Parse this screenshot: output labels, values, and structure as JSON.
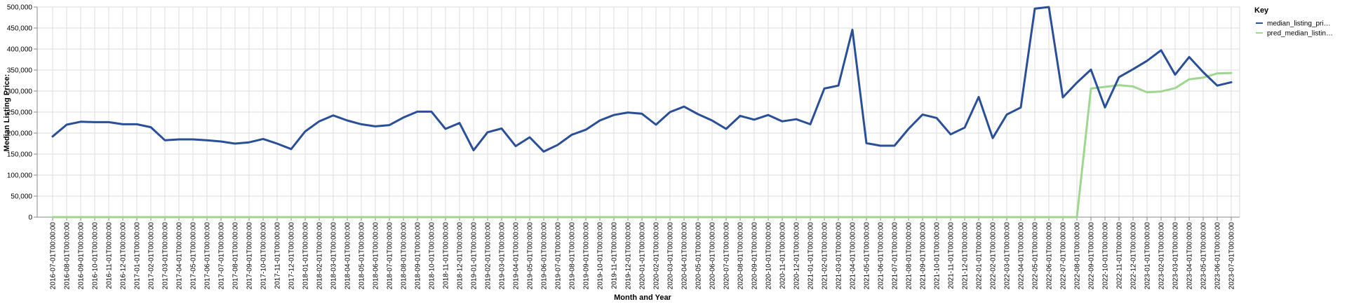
{
  "chart_data": {
    "type": "line",
    "title": "",
    "xlabel": "Month and Year",
    "ylabel": "Median Listing Price:",
    "ylim": [
      0,
      500000
    ],
    "yticks": [
      0,
      50000,
      100000,
      150000,
      200000,
      250000,
      300000,
      350000,
      400000,
      450000,
      500000
    ],
    "ytick_labels": [
      "0",
      "50,000",
      "100,000",
      "150,000",
      "200,000",
      "250,000",
      "300,000",
      "350,000",
      "400,000",
      "450,000",
      "500,000"
    ],
    "grid": true,
    "legend": {
      "title": "Key",
      "position": "top-right",
      "labels": [
        "median_listing_pri…",
        "pred_median_listin…"
      ]
    },
    "x": [
      "2016-07-01T00:00:00",
      "2016-08-01T00:00:00",
      "2016-09-01T00:00:00",
      "2016-10-01T00:00:00",
      "2016-11-01T00:00:00",
      "2016-12-01T00:00:00",
      "2017-01-01T00:00:00",
      "2017-02-01T00:00:00",
      "2017-03-01T00:00:00",
      "2017-04-01T00:00:00",
      "2017-05-01T00:00:00",
      "2017-06-01T00:00:00",
      "2017-07-01T00:00:00",
      "2017-08-01T00:00:00",
      "2017-09-01T00:00:00",
      "2017-10-01T00:00:00",
      "2017-11-01T00:00:00",
      "2017-12-01T00:00:00",
      "2018-01-01T00:00:00",
      "2018-02-01T00:00:00",
      "2018-03-01T00:00:00",
      "2018-04-01T00:00:00",
      "2018-05-01T00:00:00",
      "2018-06-01T00:00:00",
      "2018-07-01T00:00:00",
      "2018-08-01T00:00:00",
      "2018-09-01T00:00:00",
      "2018-10-01T00:00:00",
      "2018-11-01T00:00:00",
      "2018-12-01T00:00:00",
      "2019-01-01T00:00:00",
      "2019-02-01T00:00:00",
      "2019-03-01T00:00:00",
      "2019-04-01T00:00:00",
      "2019-05-01T00:00:00",
      "2019-06-01T00:00:00",
      "2019-07-01T00:00:00",
      "2019-08-01T00:00:00",
      "2019-09-01T00:00:00",
      "2019-10-01T00:00:00",
      "2019-11-01T00:00:00",
      "2019-12-01T00:00:00",
      "2020-01-01T00:00:00",
      "2020-02-01T00:00:00",
      "2020-03-01T00:00:00",
      "2020-04-01T00:00:00",
      "2020-05-01T00:00:00",
      "2020-06-01T00:00:00",
      "2020-07-01T00:00:00",
      "2020-08-01T00:00:00",
      "2020-09-01T00:00:00",
      "2020-10-01T00:00:00",
      "2020-11-01T00:00:00",
      "2020-12-01T00:00:00",
      "2021-01-01T00:00:00",
      "2021-02-01T00:00:00",
      "2021-03-01T00:00:00",
      "2021-04-01T00:00:00",
      "2021-05-01T00:00:00",
      "2021-06-01T00:00:00",
      "2021-07-01T00:00:00",
      "2021-08-01T00:00:00",
      "2021-09-01T00:00:00",
      "2021-10-01T00:00:00",
      "2021-11-01T00:00:00",
      "2021-12-01T00:00:00",
      "2022-01-01T00:00:00",
      "2022-02-01T00:00:00",
      "2022-03-01T00:00:00",
      "2022-04-01T00:00:00",
      "2022-05-01T00:00:00",
      "2022-06-01T00:00:00",
      "2022-07-01T00:00:00",
      "2022-08-01T00:00:00",
      "2022-09-01T00:00:00",
      "2022-10-01T00:00:00",
      "2022-11-01T00:00:00",
      "2022-12-01T00:00:00",
      "2023-01-01T00:00:00",
      "2023-02-01T00:00:00",
      "2023-03-01T00:00:00",
      "2023-04-01T00:00:00",
      "2023-05-01T00:00:00",
      "2023-06-01T00:00:00",
      "2023-07-01T00:00:00"
    ],
    "series": [
      {
        "name": "median_listing_pri…",
        "color": "#2a4f99",
        "values": [
          192000,
          220000,
          227000,
          226000,
          226000,
          221000,
          221000,
          214000,
          183000,
          185000,
          185000,
          183000,
          180000,
          175000,
          178000,
          186000,
          175000,
          162000,
          204000,
          228000,
          242000,
          230000,
          221000,
          216000,
          219000,
          237000,
          251000,
          251000,
          210000,
          224000,
          159000,
          202000,
          211000,
          169000,
          190000,
          156000,
          172000,
          196000,
          208000,
          230000,
          243000,
          249000,
          246000,
          220000,
          250000,
          263000,
          245000,
          230000,
          210000,
          241000,
          232000,
          243000,
          228000,
          233000,
          221000,
          306000,
          313000,
          446000,
          176000,
          170000,
          170000,
          210000,
          244000,
          236000,
          197000,
          213000,
          286000,
          188000,
          244000,
          261000,
          496000,
          500000,
          285000,
          320000,
          351000,
          261000,
          333000,
          352000,
          372000,
          397000,
          339000,
          381000,
          345000,
          313000,
          321000
        ]
      },
      {
        "name": "pred_median_listin…",
        "color": "#9fd690",
        "values": [
          0,
          0,
          0,
          0,
          0,
          0,
          0,
          0,
          0,
          0,
          0,
          0,
          0,
          0,
          0,
          0,
          0,
          0,
          0,
          0,
          0,
          0,
          0,
          0,
          0,
          0,
          0,
          0,
          0,
          0,
          0,
          0,
          0,
          0,
          0,
          0,
          0,
          0,
          0,
          0,
          0,
          0,
          0,
          0,
          0,
          0,
          0,
          0,
          0,
          0,
          0,
          0,
          0,
          0,
          0,
          0,
          0,
          0,
          0,
          0,
          0,
          0,
          0,
          0,
          0,
          0,
          0,
          0,
          0,
          0,
          0,
          0,
          0,
          0,
          306000,
          310000,
          314000,
          311000,
          297000,
          299000,
          307000,
          328000,
          332000,
          342000,
          343000
        ]
      }
    ]
  }
}
